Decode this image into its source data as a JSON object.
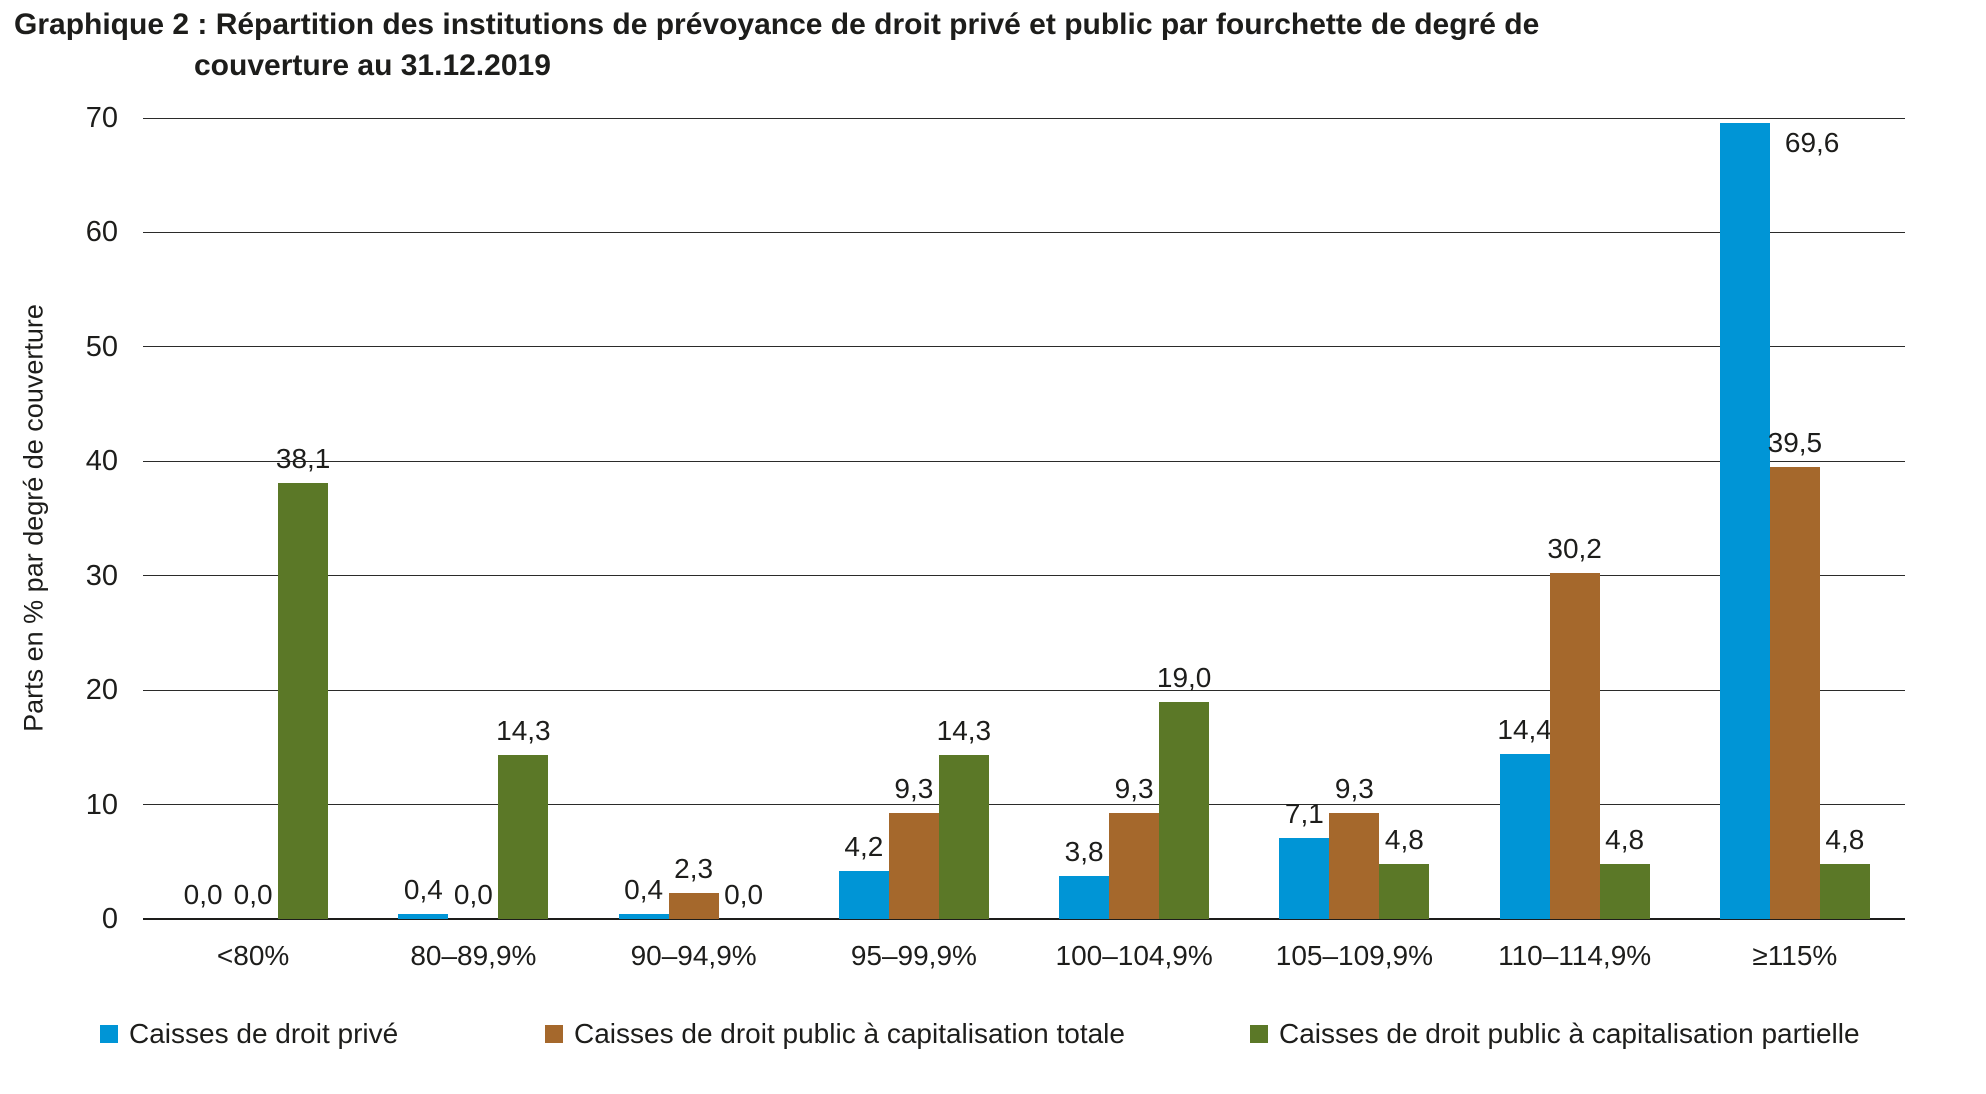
{
  "title": {
    "line1": "Graphique 2 : Répartition des institutions de prévoyance de droit privé et public par fourchette de degré de",
    "line2": "couverture au 31.12.2019"
  },
  "chart_data": {
    "type": "bar",
    "title": "Graphique 2 : Répartition des institutions de prévoyance de droit privé et public par fourchette de degré de couverture au 31.12.2019",
    "xlabel": "",
    "ylabel": "Parts en % par degré de couverture",
    "ylim": [
      0,
      70
    ],
    "yticks": [
      0,
      10,
      20,
      30,
      40,
      50,
      60,
      70
    ],
    "grid": true,
    "legend_position": "bottom",
    "decimal_separator": ",",
    "categories": [
      "<80%",
      "80–89,9%",
      "90–94,9%",
      "95–99,9%",
      "100–104,9%",
      "105–109,9%",
      "110–114,9%",
      "≥115%"
    ],
    "series": [
      {
        "name": "Caisses de droit privé",
        "color": "#0095d6",
        "values": [
          0.0,
          0.4,
          0.4,
          4.2,
          3.8,
          7.1,
          14.4,
          69.6
        ],
        "labels": [
          "0,0",
          "0,4",
          "0,4",
          "4,2",
          "3,8",
          "7,1",
          "14,4",
          "69,6"
        ]
      },
      {
        "name": "Caisses de droit public à capitalisation totale",
        "color": "#a5682c",
        "values": [
          0.0,
          0.0,
          2.3,
          9.3,
          9.3,
          9.3,
          30.2,
          39.5
        ],
        "labels": [
          "0,0",
          "0,0",
          "2,3",
          "9,3",
          "9,3",
          "9,3",
          "30,2",
          "39,5"
        ]
      },
      {
        "name": "Caisses de droit public à capitalisation partielle",
        "color": "#5b7827",
        "values": [
          38.1,
          14.3,
          0.0,
          14.3,
          19.0,
          4.8,
          4.8,
          4.8
        ],
        "labels": [
          "38,1",
          "14,3",
          "0,0",
          "14,3",
          "19,0",
          "4,8",
          "4,8",
          "4,8"
        ]
      }
    ],
    "label_overrides": [
      {
        "series": 0,
        "index": 7,
        "position": "right"
      }
    ]
  }
}
